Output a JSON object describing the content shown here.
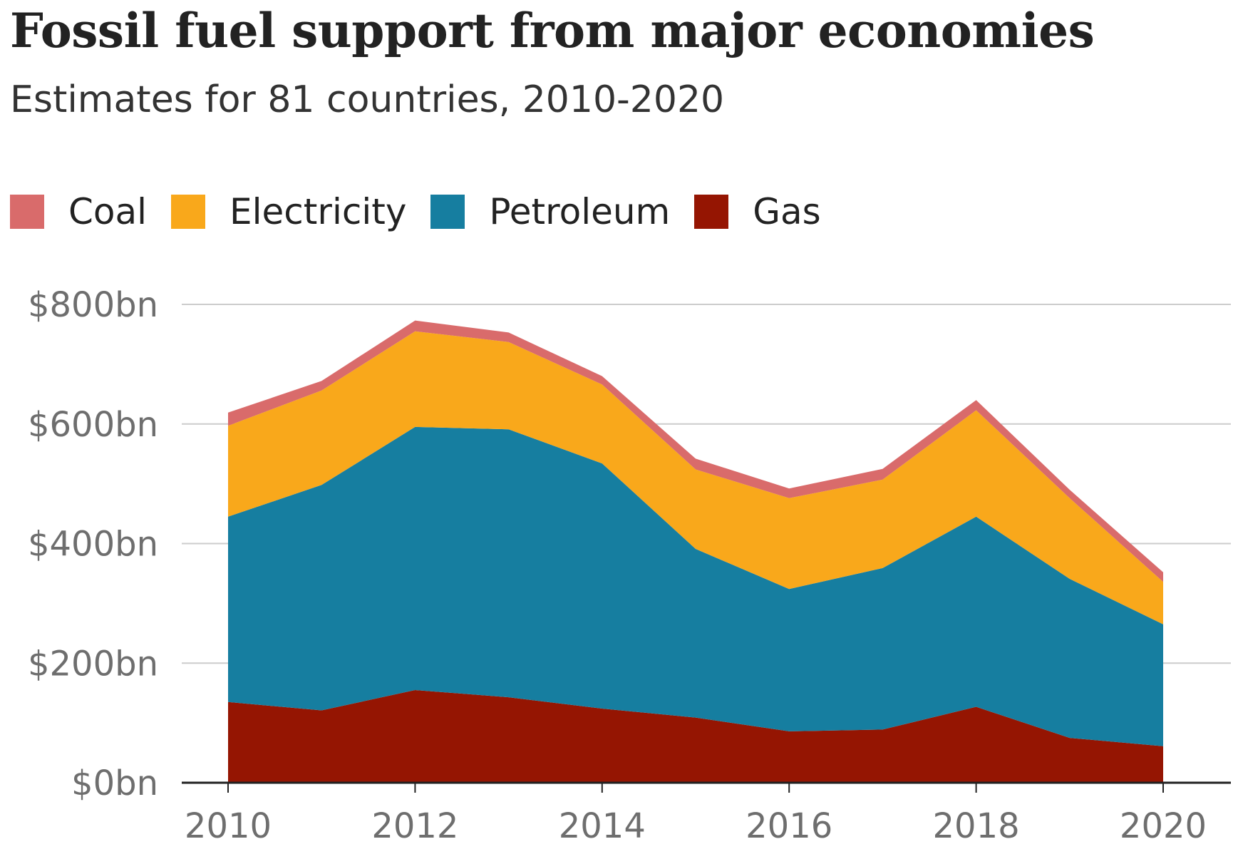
{
  "title": "Fossil fuel support from major economies",
  "subtitle": "Estimates for 81 countries, 2010-2020",
  "legend": [
    {
      "name": "Coal",
      "color": "#d96b6b"
    },
    {
      "name": "Electricity",
      "color": "#f9a81b"
    },
    {
      "name": "Petroleum",
      "color": "#167ea0"
    },
    {
      "name": "Gas",
      "color": "#951502"
    }
  ],
  "chart_data": {
    "type": "area",
    "stacked": true,
    "title": "Fossil fuel support from major economies",
    "subtitle": "Estimates for 81 countries, 2010-2020",
    "x": [
      2010,
      2011,
      2012,
      2013,
      2014,
      2015,
      2016,
      2017,
      2018,
      2019,
      2020
    ],
    "x_tick_labels": [
      "2010",
      "2012",
      "2014",
      "2016",
      "2018",
      "2020"
    ],
    "y_tick_labels": [
      "$0bn",
      "$200bn",
      "$400bn",
      "$600bn",
      "$800bn"
    ],
    "y_ticks": [
      0,
      200,
      400,
      600,
      800
    ],
    "ylim": [
      0,
      800
    ],
    "xlim": [
      2010,
      2020
    ],
    "y_unit": "$bn",
    "grid": true,
    "legend_position": "top-left",
    "series": [
      {
        "name": "Gas",
        "color": "#951502",
        "values": [
          135,
          121,
          155,
          143,
          124,
          109,
          86,
          89,
          127,
          75,
          61
        ]
      },
      {
        "name": "Petroleum",
        "color": "#167ea0",
        "values": [
          310,
          377,
          440,
          448,
          410,
          282,
          238,
          270,
          318,
          266,
          204
        ]
      },
      {
        "name": "Electricity",
        "color": "#f9a81b",
        "values": [
          152,
          158,
          160,
          146,
          132,
          133,
          152,
          148,
          178,
          135,
          71
        ]
      },
      {
        "name": "Coal",
        "color": "#d96b6b",
        "values": [
          22,
          16,
          18,
          16,
          14,
          18,
          16,
          18,
          17,
          14,
          16
        ]
      }
    ]
  }
}
